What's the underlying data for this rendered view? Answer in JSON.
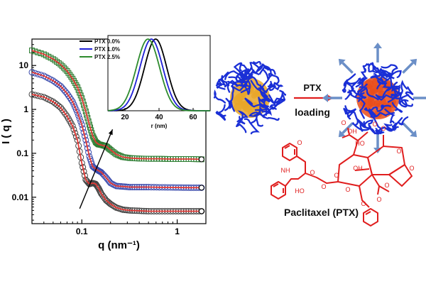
{
  "chart_data": [
    {
      "type": "scatter",
      "title": "",
      "xlabel": "q (nm⁻¹)",
      "ylabel": "I ( q )",
      "xscale": "log",
      "yscale": "log",
      "xlim": [
        0.03,
        2.0
      ],
      "ylim": [
        0.0025,
        40
      ],
      "x_tick_labels": [
        "0.1",
        "1"
      ],
      "x_ticks": [
        0.1,
        1
      ],
      "y_tick_labels": [
        "0.01",
        "0.1",
        "1",
        "10"
      ],
      "y_ticks": [
        0.01,
        0.1,
        1,
        10
      ],
      "grid": false,
      "legend": "none",
      "series": [
        {
          "color": "#2e7d32",
          "marker": "square",
          "fit_color": "#e53935",
          "x": [
            0.03,
            0.04,
            0.05,
            0.06,
            0.07,
            0.08,
            0.09,
            0.1,
            0.11,
            0.12,
            0.13,
            0.14,
            0.15,
            0.16,
            0.18,
            0.2,
            0.23,
            0.27,
            0.32,
            0.4,
            0.5,
            0.65,
            0.85,
            1.1,
            1.4,
            1.8
          ],
          "y": [
            22,
            18,
            14,
            10.5,
            7.5,
            5,
            3.2,
            1.8,
            0.9,
            0.45,
            0.25,
            0.18,
            0.16,
            0.155,
            0.145,
            0.12,
            0.095,
            0.082,
            0.078,
            0.076,
            0.075,
            0.075,
            0.074,
            0.074,
            0.074,
            0.073
          ]
        },
        {
          "color": "#3949ab",
          "marker": "circle",
          "fit_color": "#e53935",
          "x": [
            0.03,
            0.04,
            0.05,
            0.06,
            0.07,
            0.08,
            0.09,
            0.1,
            0.11,
            0.12,
            0.13,
            0.14,
            0.15,
            0.16,
            0.18,
            0.2,
            0.23,
            0.27,
            0.32,
            0.4,
            0.5,
            0.65,
            0.85,
            1.1,
            1.4,
            1.8
          ],
          "y": [
            7,
            5.8,
            4.5,
            3.4,
            2.3,
            1.5,
            0.85,
            0.45,
            0.2,
            0.085,
            0.05,
            0.044,
            0.04,
            0.037,
            0.028,
            0.021,
            0.018,
            0.0175,
            0.017,
            0.017,
            0.017,
            0.0168,
            0.0167,
            0.0166,
            0.0165,
            0.0165
          ]
        },
        {
          "color": "#424242",
          "marker": "circle",
          "fit_color": "#e53935",
          "x": [
            0.03,
            0.04,
            0.05,
            0.06,
            0.07,
            0.08,
            0.09,
            0.1,
            0.11,
            0.12,
            0.13,
            0.14,
            0.15,
            0.16,
            0.18,
            0.2,
            0.23,
            0.27,
            0.32,
            0.4,
            0.5,
            0.65,
            0.85,
            1.1,
            1.4,
            1.8
          ],
          "y": [
            2.2,
            1.9,
            1.5,
            1.1,
            0.7,
            0.42,
            0.2,
            0.06,
            0.025,
            0.02,
            0.021,
            0.02,
            0.016,
            0.012,
            0.0085,
            0.007,
            0.0058,
            0.0052,
            0.005,
            0.0049,
            0.0048,
            0.0048,
            0.0048,
            0.0048,
            0.0048,
            0.0048
          ]
        }
      ],
      "annotations": [
        {
          "type": "arrow",
          "from": [
            0.095,
            0.0055
          ],
          "to": [
            0.21,
            0.35
          ],
          "color": "#000000"
        }
      ]
    },
    {
      "type": "line",
      "title": "",
      "xlabel": "r (nm)",
      "ylabel": "",
      "xlim": [
        10,
        70
      ],
      "ylim": [
        0,
        1.05
      ],
      "x_tick_labels": [
        "20",
        "40",
        "60"
      ],
      "x_ticks": [
        20,
        40,
        60
      ],
      "legend": "top-left",
      "series": [
        {
          "name": "PTX 0.0%",
          "color": "#000000",
          "center": 38,
          "width": 6.5
        },
        {
          "name": "PTX 1.0%",
          "color": "#1f1fd6",
          "center": 35.5,
          "width": 6.7
        },
        {
          "name": "PTX 2.5%",
          "color": "#2e8b2e",
          "center": 33.5,
          "width": 6.8
        }
      ]
    }
  ],
  "schematic": {
    "arrow_label_top": "PTX",
    "arrow_label_bottom": "loading",
    "molecule_caption": "Paclitaxel (PTX)",
    "atom_labels": [
      "NH",
      "O",
      "O",
      "O",
      "HO",
      "O",
      "OH",
      "O",
      "O",
      "O",
      "HO",
      "O",
      "O",
      "OH",
      "O",
      "O",
      "O",
      "O"
    ],
    "colors": {
      "polymer": "#1a2fd6",
      "core_before": "#e8a62a",
      "core_after": "#e84e1b",
      "molecule": "#e01e1e",
      "expansion_arrows": "#6b8fc7"
    }
  }
}
